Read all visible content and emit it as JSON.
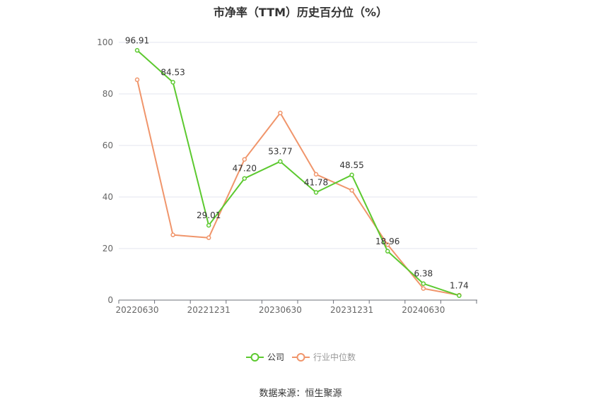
{
  "chart_data": {
    "type": "line",
    "title": "市净率（TTM）历史百分位（%）",
    "x": [
      "2022-06-30",
      "2022-09-30",
      "2022-12-31",
      "2023-03-31",
      "2023-06-30",
      "2023-09-30",
      "2023-12-31",
      "2024-03-31",
      "2024-06-30",
      "2024-09-30"
    ],
    "x_tick_labels": [
      "20220630",
      "20221231",
      "20230630",
      "20231231",
      "20240630"
    ],
    "ylim": [
      0,
      100
    ],
    "y_ticks": [
      0,
      20,
      40,
      60,
      80,
      100
    ],
    "grid": true,
    "legend_position": "bottom-center",
    "series": [
      {
        "name": "公司",
        "color": "#5cc92f",
        "values": [
          96.91,
          84.53,
          29.01,
          47.2,
          53.77,
          41.78,
          48.55,
          18.96,
          6.38,
          1.74
        ],
        "data_labels": [
          "96.91",
          "84.53",
          "29.01",
          "47.20",
          "53.77",
          "41.78",
          "48.55",
          "18.96",
          "6.38",
          "1.74"
        ]
      },
      {
        "name": "行业中位数",
        "color": "#f0956b",
        "values": [
          85.5,
          25.3,
          24.2,
          54.6,
          72.6,
          48.8,
          42.6,
          21.5,
          4.5,
          1.9
        ]
      }
    ],
    "source": "数据来源：恒生聚源"
  }
}
